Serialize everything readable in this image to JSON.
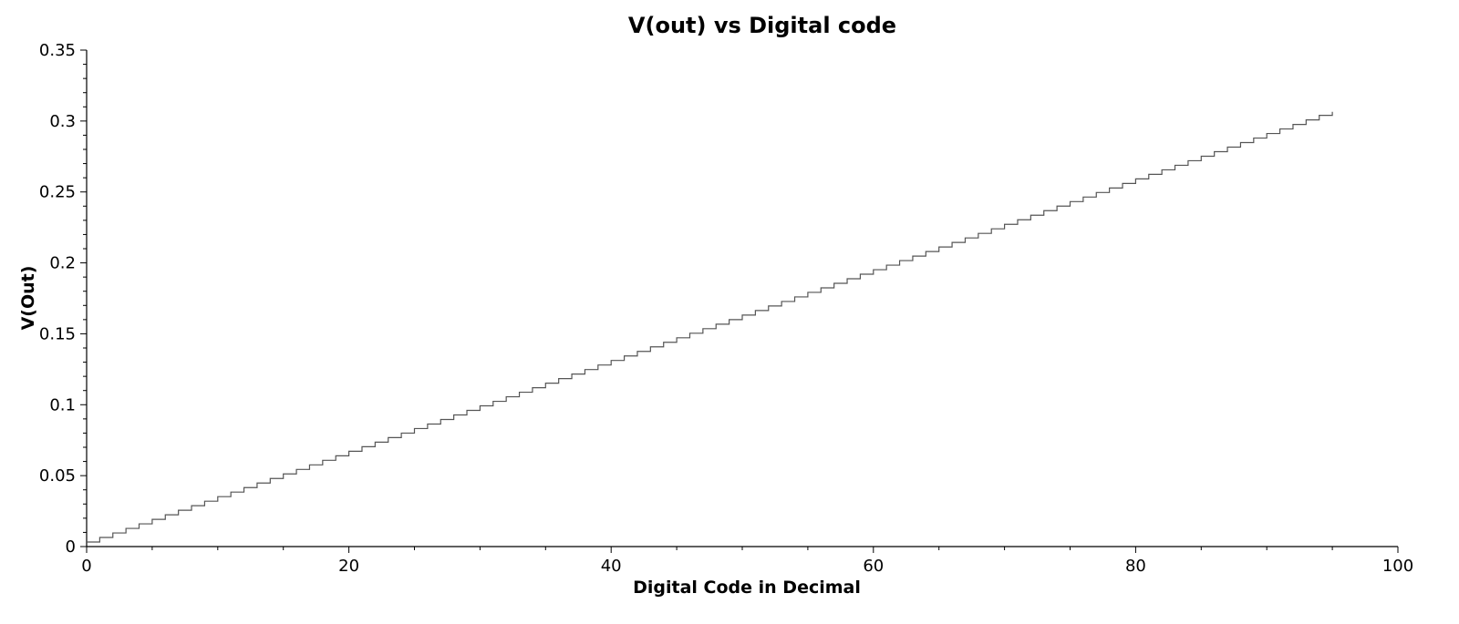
{
  "chart_data": {
    "type": "line",
    "title": "V(out) vs Digital code",
    "xlabel": "Digital Code in Decimal",
    "ylabel": "V(Out)",
    "xlim": [
      0,
      100
    ],
    "ylim": [
      0,
      0.35
    ],
    "x_ticks": [
      0,
      20,
      40,
      60,
      80,
      100
    ],
    "y_ticks": [
      0,
      0.05,
      0.1,
      0.15,
      0.2,
      0.25,
      0.3,
      0.35
    ],
    "x_tick_labels": [
      "0",
      "20",
      "40",
      "60",
      "80",
      "100"
    ],
    "y_tick_labels": [
      "0",
      "0.05",
      "0.1",
      "0.15",
      "0.2",
      "0.25",
      "0.3",
      "0.35"
    ],
    "grid": false,
    "step": true,
    "series": [
      {
        "color": "#555555",
        "x": [
          0,
          1,
          2,
          3,
          4,
          5,
          6,
          7,
          8,
          9,
          10,
          11,
          12,
          13,
          14,
          15,
          16,
          17,
          18,
          19,
          20,
          21,
          22,
          23,
          24,
          25,
          26,
          27,
          28,
          29,
          30,
          31,
          32,
          33,
          34,
          35,
          36,
          37,
          38,
          39,
          40,
          41,
          42,
          43,
          44,
          45,
          46,
          47,
          48,
          49,
          50,
          51,
          52,
          53,
          54,
          55,
          56,
          57,
          58,
          59,
          60,
          61,
          62,
          63,
          64,
          65,
          66,
          67,
          68,
          69,
          70,
          71,
          72,
          73,
          74,
          75,
          76,
          77,
          78,
          79,
          80,
          81,
          82,
          83,
          84,
          85,
          86,
          87,
          88,
          89,
          90,
          91,
          92,
          93,
          94,
          95
        ],
        "y": [
          0.0032,
          0.0064,
          0.0096,
          0.0128,
          0.016,
          0.0192,
          0.0224,
          0.0256,
          0.0288,
          0.032,
          0.0352,
          0.0384,
          0.0416,
          0.0448,
          0.048,
          0.0512,
          0.0544,
          0.0576,
          0.0608,
          0.064,
          0.0672,
          0.0704,
          0.0736,
          0.0768,
          0.08,
          0.0832,
          0.0864,
          0.0896,
          0.0928,
          0.096,
          0.0992,
          0.1024,
          0.1056,
          0.1088,
          0.112,
          0.1152,
          0.1184,
          0.1216,
          0.1248,
          0.128,
          0.1312,
          0.1344,
          0.1376,
          0.1408,
          0.144,
          0.1472,
          0.1504,
          0.1536,
          0.1568,
          0.16,
          0.1632,
          0.1664,
          0.1696,
          0.1728,
          0.176,
          0.1792,
          0.1824,
          0.1856,
          0.1888,
          0.192,
          0.1952,
          0.1984,
          0.2016,
          0.2048,
          0.208,
          0.2112,
          0.2144,
          0.2176,
          0.2208,
          0.224,
          0.2272,
          0.2304,
          0.2336,
          0.2368,
          0.24,
          0.2432,
          0.2464,
          0.2496,
          0.2528,
          0.256,
          0.2592,
          0.2624,
          0.2656,
          0.2688,
          0.272,
          0.2752,
          0.2784,
          0.2816,
          0.2848,
          0.288,
          0.2912,
          0.2944,
          0.2976,
          0.3008,
          0.304,
          0.3065
        ]
      }
    ]
  }
}
